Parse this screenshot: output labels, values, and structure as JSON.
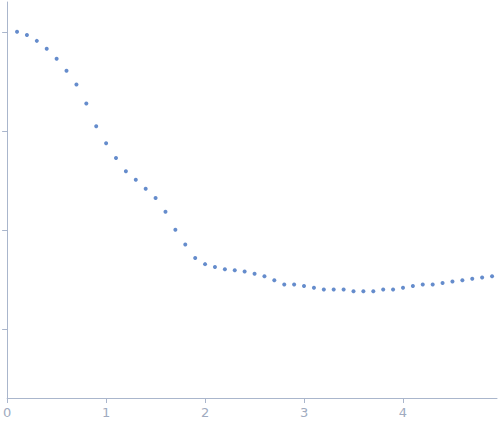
{
  "chart_data": {
    "type": "scatter",
    "log": "y",
    "tick_labels": "x",
    "grid": false,
    "color": "#3f6fbf",
    "marker": "circle",
    "x": [
      0.1,
      0.2,
      0.3,
      0.4,
      0.5,
      0.6,
      0.7,
      0.8,
      0.9,
      1.0,
      1.1,
      1.2,
      1.3,
      1.4,
      1.5,
      1.6,
      1.7,
      1.8,
      1.9,
      2.0,
      2.1,
      2.2,
      2.3,
      2.4,
      2.5,
      2.6,
      2.7,
      2.8,
      2.9,
      3.0,
      3.1,
      3.2,
      3.3,
      3.4,
      3.5,
      3.6,
      3.7,
      3.8,
      3.9,
      4.0,
      4.1,
      4.2,
      4.3,
      4.4,
      4.5,
      4.6,
      4.7,
      4.8,
      4.9
    ],
    "values": [
      1.0,
      0.93,
      0.81,
      0.675,
      0.535,
      0.405,
      0.293,
      0.189,
      0.111,
      0.075,
      0.053,
      0.039,
      0.032,
      0.026,
      0.021,
      0.0152,
      0.01,
      0.0071,
      0.0052,
      0.0045,
      0.0042,
      0.004,
      0.0039,
      0.0038,
      0.0036,
      0.0034,
      0.0031,
      0.0028,
      0.0028,
      0.0027,
      0.0026,
      0.0025,
      0.0025,
      0.0025,
      0.0024,
      0.0024,
      0.0024,
      0.0025,
      0.0025,
      0.0026,
      0.0027,
      0.0028,
      0.0028,
      0.0029,
      0.003,
      0.0031,
      0.0032,
      0.0033,
      0.0034
    ],
    "xlim": [
      0,
      4.95
    ],
    "xticks": [
      0,
      1,
      2,
      3,
      4
    ],
    "ylim": [
      0.0002,
      2
    ],
    "yticks": [
      0.001,
      0.01,
      0.1,
      1
    ]
  }
}
